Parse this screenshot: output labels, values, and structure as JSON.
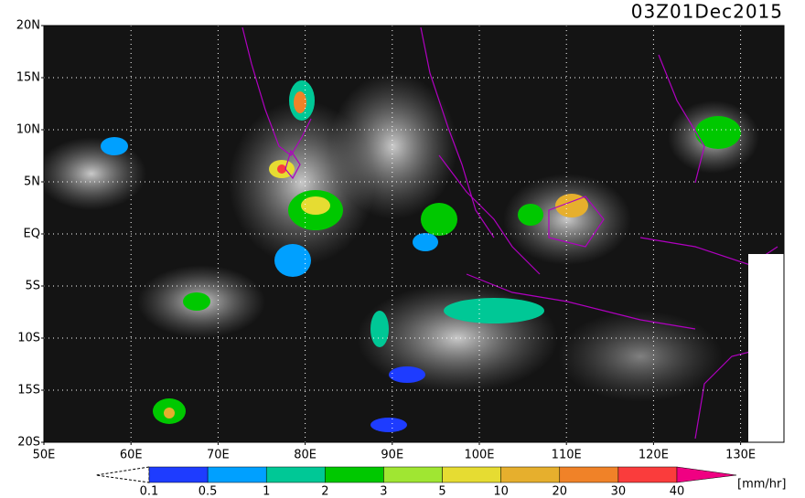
{
  "header": {
    "timestamp": "03Z01Dec2015"
  },
  "axes": {
    "lat_labels": [
      "20N",
      "15N",
      "10N",
      "5N",
      "EQ",
      "5S",
      "10S",
      "15S",
      "20S"
    ],
    "lon_labels": [
      "50E",
      "60E",
      "70E",
      "80E",
      "90E",
      "100E",
      "110E",
      "120E",
      "130E"
    ]
  },
  "colorbar": {
    "levels": [
      0.1,
      0.5,
      1,
      2,
      3,
      5,
      10,
      20,
      30,
      40
    ],
    "colors": [
      "#1e3cff",
      "#00a0ff",
      "#00c896",
      "#00c800",
      "#a0e632",
      "#e6dc32",
      "#e6af2d",
      "#f08228",
      "#fa3c3c",
      "#f00082"
    ],
    "unit": "[mm/hr]"
  }
}
